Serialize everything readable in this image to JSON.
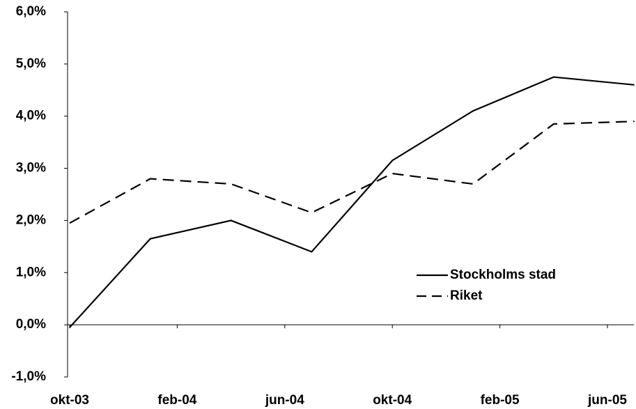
{
  "chart_data": {
    "type": "line",
    "x": [
      "2003-10",
      "2004-01",
      "2004-04",
      "2004-07",
      "2004-10",
      "2005-01",
      "2005-04",
      "2005-07"
    ],
    "series": [
      {
        "name": "Stockholms stad",
        "color": "#000000",
        "dash": "solid",
        "values": [
          -0.05,
          1.65,
          2.0,
          1.4,
          3.15,
          4.1,
          4.75,
          4.6
        ]
      },
      {
        "name": "Riket",
        "color": "#000000",
        "dash": "dashed",
        "values": [
          1.95,
          2.8,
          2.7,
          2.15,
          2.9,
          2.7,
          3.85,
          3.9
        ]
      }
    ],
    "xticks": [
      {
        "value": "2003-10",
        "label": "okt-03"
      },
      {
        "value": "2004-02",
        "label": "feb-04"
      },
      {
        "value": "2004-06",
        "label": "jun-04"
      },
      {
        "value": "2004-10",
        "label": "okt-04"
      },
      {
        "value": "2005-02",
        "label": "feb-05"
      },
      {
        "value": "2005-06",
        "label": "jun-05"
      }
    ],
    "ylim": [
      -1,
      6
    ],
    "yticks": [
      {
        "value": -1,
        "label": "-1,0%"
      },
      {
        "value": 0,
        "label": "0,0%"
      },
      {
        "value": 1,
        "label": "1,0%"
      },
      {
        "value": 2,
        "label": "2,0%"
      },
      {
        "value": 3,
        "label": "3,0%"
      },
      {
        "value": 4,
        "label": "4,0%"
      },
      {
        "value": 5,
        "label": "5,0%"
      },
      {
        "value": 6,
        "label": "6,0%"
      }
    ],
    "legend": "center-right",
    "grid": false
  }
}
